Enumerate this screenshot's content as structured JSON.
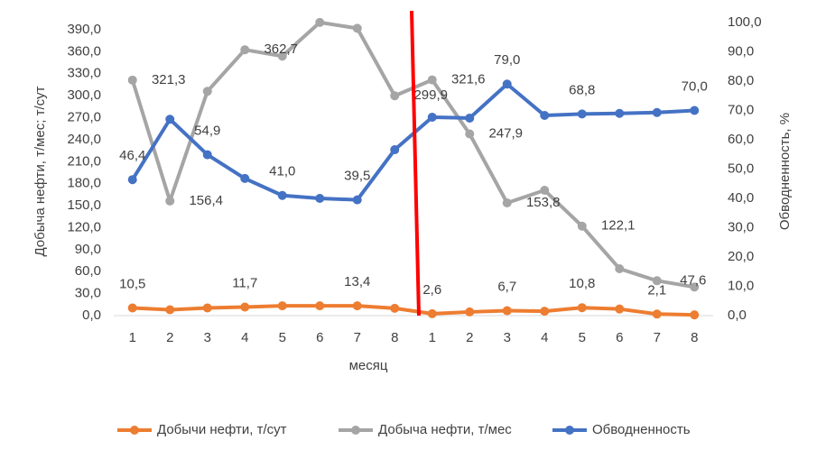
{
  "chart_data": {
    "type": "line",
    "x_label": "месяц",
    "y_label": "Добыча нефти, т/мес; т/сут",
    "y2_label": "Обводненность, %",
    "categories": [
      "1",
      "2",
      "3",
      "4",
      "5",
      "6",
      "7",
      "8",
      "1",
      "2",
      "3",
      "4",
      "5",
      "6",
      "7",
      "8"
    ],
    "ylim": [
      0,
      390
    ],
    "yticks": [
      {
        "value": 0,
        "label": "0,0"
      },
      {
        "value": 30,
        "label": "30,0"
      },
      {
        "value": 60,
        "label": "60,0"
      },
      {
        "value": 90,
        "label": "90,0"
      },
      {
        "value": 120,
        "label": "120,0"
      },
      {
        "value": 150,
        "label": "150,0"
      },
      {
        "value": 180,
        "label": "180,0"
      },
      {
        "value": 210,
        "label": "210,0"
      },
      {
        "value": 240,
        "label": "240,0"
      },
      {
        "value": 270,
        "label": "270,0"
      },
      {
        "value": 300,
        "label": "300,0"
      },
      {
        "value": 330,
        "label": "330,0"
      },
      {
        "value": 360,
        "label": "360,0"
      },
      {
        "value": 390,
        "label": "390,0"
      }
    ],
    "y2lim": [
      0,
      100
    ],
    "y2ticks": [
      {
        "value": 0,
        "label": "0,0"
      },
      {
        "value": 10,
        "label": "10,0"
      },
      {
        "value": 20,
        "label": "20,0"
      },
      {
        "value": 30,
        "label": "30,0"
      },
      {
        "value": 40,
        "label": "40,0"
      },
      {
        "value": 50,
        "label": "50,0"
      },
      {
        "value": 60,
        "label": "60,0"
      },
      {
        "value": 70,
        "label": "70,0"
      },
      {
        "value": 80,
        "label": "80,0"
      },
      {
        "value": 90,
        "label": "90,0"
      },
      {
        "value": 100,
        "label": "100,0"
      }
    ],
    "legend": "bottom",
    "series": [
      {
        "name": "Добычи нефти, т/сут",
        "color": "#ed7d31",
        "values": [
          10.5,
          8,
          10.5,
          11.7,
          13.4,
          13.4,
          13.4,
          10,
          2.6,
          5,
          6.7,
          6,
          10.8,
          9,
          2.1,
          1
        ],
        "value_labels": [
          "10,5",
          null,
          null,
          "11,7",
          null,
          null,
          "13,4",
          null,
          "2,6",
          null,
          "6,7",
          null,
          "10,8",
          null,
          "2,1",
          null
        ]
      },
      {
        "name": "Добыча нефти, т/мес",
        "color": "#a5a5a5",
        "values": [
          321.3,
          156.4,
          306,
          362.7,
          354,
          400,
          392,
          299.9,
          321.6,
          247.9,
          153.8,
          171,
          122.1,
          64,
          47.6,
          39
        ],
        "value_labels": [
          "321,3",
          "156,4",
          null,
          "362,7",
          null,
          null,
          null,
          "299,9",
          "321,6",
          "247,9",
          "153,8",
          null,
          "122,1",
          null,
          "47,6",
          null
        ]
      },
      {
        "name": "Обводненность",
        "color": "#4472c4",
        "axis": "y2",
        "values": [
          46.4,
          67,
          54.9,
          46.8,
          41.0,
          40,
          39.5,
          56.6,
          67.7,
          67.4,
          79.0,
          68.3,
          68.8,
          69,
          69.3,
          70.0
        ],
        "value_labels": [
          "46,4",
          null,
          "54,9",
          null,
          "41,0",
          null,
          "39,5",
          null,
          null,
          null,
          "79,0",
          null,
          "68,8",
          null,
          null,
          "70,0"
        ]
      }
    ]
  }
}
